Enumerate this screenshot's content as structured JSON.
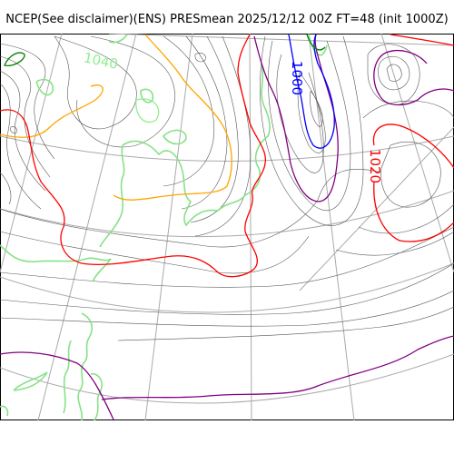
{
  "title": "NCEP(See disclaimer)(ENS) PRESmean 2025/12/12 00Z FT=48 (init 1000Z)",
  "contour_labels": {
    "high_west": "1040",
    "low_center": "1000",
    "ridge_east": "1020"
  },
  "colors": {
    "isobar": "#555555",
    "graticule": "#aaaaaa",
    "coastline": "#86e286",
    "contour_1000": "#0000ff",
    "contour_1020": "#ff0000",
    "contour_1010": "#800080",
    "contour_1030": "#ffa500",
    "contour_1040": "#90ee90",
    "contour_1050": "#008000"
  }
}
